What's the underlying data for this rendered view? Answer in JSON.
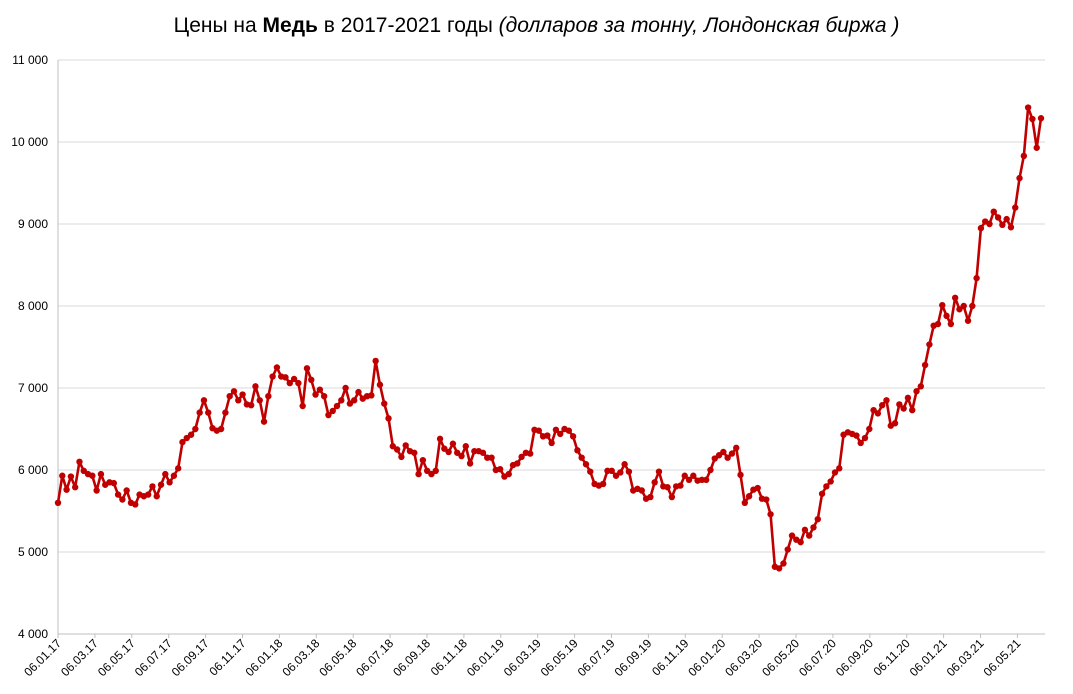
{
  "chart_data": {
    "type": "line",
    "title_parts": {
      "prefix": "Цены на ",
      "bold": "Медь",
      "middle": " в 2017-2021 годы ",
      "italic": "(долларов за тонну, Лондонская биржа )"
    },
    "ylim": [
      4000,
      11000
    ],
    "yticks": [
      {
        "value": 4000,
        "label": "4 000"
      },
      {
        "value": 5000,
        "label": "5 000"
      },
      {
        "value": 6000,
        "label": "6 000"
      },
      {
        "value": 7000,
        "label": "7 000"
      },
      {
        "value": 8000,
        "label": "8 000"
      },
      {
        "value": 9000,
        "label": "9 000"
      },
      {
        "value": 10000,
        "label": "10 000"
      },
      {
        "value": 11000,
        "label": "11 000"
      }
    ],
    "xticks": [
      "06.01.17",
      "06.03.17",
      "06.05.17",
      "06.07.17",
      "06.09.17",
      "06.11.17",
      "06.01.18",
      "06.03.18",
      "06.05.18",
      "06.07.18",
      "06.09.18",
      "06.11.18",
      "06.01.19",
      "06.03.19",
      "06.05.19",
      "06.07.19",
      "06.09.19",
      "06.11.19",
      "06.01.20",
      "06.03.20",
      "06.05.20",
      "06.07.20",
      "06.09.20",
      "06.11.20",
      "06.01.21",
      "06.03.21",
      "06.05.21"
    ],
    "grid": true,
    "legend": "none",
    "series_color": "#c00000",
    "series": [
      {
        "values": [
          5600,
          5930,
          5760,
          5920,
          5790,
          6100,
          5990,
          5950,
          5930,
          5750,
          5950,
          5820,
          5850,
          5840,
          5700,
          5640,
          5750,
          5600,
          5580,
          5700,
          5680,
          5700,
          5800,
          5680,
          5820,
          5950,
          5850,
          5930,
          6020,
          6340,
          6390,
          6430,
          6500,
          6700,
          6850,
          6700,
          6510,
          6480,
          6500,
          6700,
          6900,
          6960,
          6850,
          6920,
          6800,
          6790,
          7020,
          6850,
          6590,
          6900,
          7140,
          7250,
          7140,
          7130,
          7060,
          7110,
          7060,
          6780,
          7240,
          7100,
          6920,
          6980,
          6900,
          6670,
          6720,
          6780,
          6850,
          7000,
          6810,
          6850,
          6950,
          6870,
          6900,
          6910,
          7330,
          7040,
          6810,
          6630,
          6290,
          6250,
          6160,
          6300,
          6230,
          6210,
          5950,
          6120,
          5990,
          5950,
          5990,
          6380,
          6260,
          6220,
          6320,
          6210,
          6170,
          6290,
          6080,
          6230,
          6230,
          6210,
          6150,
          6150,
          6000,
          6010,
          5920,
          5950,
          6060,
          6080,
          6160,
          6210,
          6200,
          6490,
          6480,
          6410,
          6420,
          6330,
          6490,
          6440,
          6500,
          6480,
          6410,
          6240,
          6150,
          6070,
          5980,
          5830,
          5810,
          5830,
          5990,
          5990,
          5930,
          5970,
          6070,
          5980,
          5750,
          5770,
          5750,
          5650,
          5670,
          5850,
          5980,
          5800,
          5790,
          5670,
          5800,
          5810,
          5930,
          5880,
          5930,
          5870,
          5880,
          5880,
          6000,
          6140,
          6180,
          6220,
          6150,
          6200,
          6270,
          5940,
          5600,
          5680,
          5760,
          5780,
          5650,
          5640,
          5460,
          4820,
          4800,
          4860,
          5030,
          5200,
          5150,
          5120,
          5270,
          5200,
          5300,
          5400,
          5710,
          5800,
          5860,
          5970,
          6020,
          6430,
          6460,
          6440,
          6420,
          6330,
          6390,
          6500,
          6730,
          6690,
          6790,
          6850,
          6540,
          6570,
          6800,
          6750,
          6880,
          6730,
          6960,
          7020,
          7280,
          7530,
          7760,
          7780,
          8010,
          7880,
          7780,
          8100,
          7960,
          8000,
          7820,
          8000,
          8340,
          8950,
          9030,
          9000,
          9150,
          9080,
          8990,
          9060,
          8960,
          9200,
          9560,
          9830,
          10420,
          10280,
          9930,
          10290
        ]
      }
    ]
  }
}
